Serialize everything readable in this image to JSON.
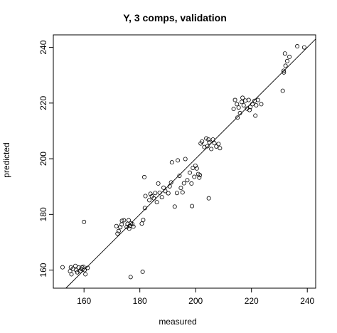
{
  "chart_data": {
    "type": "scatter",
    "title": "Y, 3 comps, validation",
    "xlabel": "measured",
    "ylabel": "predicted",
    "xlim": [
      149,
      243
    ],
    "ylim": [
      153.5,
      244.5
    ],
    "x_ticks": [
      160,
      180,
      200,
      220,
      240
    ],
    "y_ticks": [
      160,
      180,
      200,
      220,
      240
    ],
    "x_tick_labels": [
      "160",
      "180",
      "200",
      "220",
      "240"
    ],
    "y_tick_labels": [
      "160",
      "180",
      "200",
      "220",
      "240"
    ],
    "reference_line": {
      "slope": 1,
      "intercept": 0
    },
    "grid": false,
    "legend": "none",
    "points": [
      [
        152.3,
        161.0
      ],
      [
        155.0,
        159.6
      ],
      [
        155.3,
        161.0
      ],
      [
        156.0,
        160.5
      ],
      [
        156.9,
        161.5
      ],
      [
        157.6,
        159.2
      ],
      [
        158.1,
        160.9
      ],
      [
        158.6,
        159.6
      ],
      [
        159.0,
        160.4
      ],
      [
        159.3,
        161.0
      ],
      [
        159.8,
        161.2
      ],
      [
        160.2,
        160.0
      ],
      [
        160.5,
        158.5
      ],
      [
        161.3,
        160.8
      ],
      [
        157.2,
        160.0
      ],
      [
        155.5,
        158.5
      ],
      [
        160.0,
        177.3
      ],
      [
        171.6,
        175.8
      ],
      [
        172.0,
        173.1
      ],
      [
        172.4,
        174.0
      ],
      [
        173.0,
        175.4
      ],
      [
        173.5,
        176.4
      ],
      [
        173.6,
        177.7
      ],
      [
        174.3,
        177.9
      ],
      [
        175.3,
        175.5
      ],
      [
        175.6,
        176.6
      ],
      [
        176.0,
        177.9
      ],
      [
        176.4,
        175.9
      ],
      [
        176.8,
        176.8
      ],
      [
        177.3,
        176.5
      ],
      [
        176.2,
        174.9
      ],
      [
        177.7,
        175.6
      ],
      [
        176.7,
        157.5
      ],
      [
        181.0,
        159.4
      ],
      [
        180.7,
        176.7
      ],
      [
        181.2,
        178.0
      ],
      [
        181.6,
        193.4
      ],
      [
        181.8,
        182.3
      ],
      [
        182.0,
        186.6
      ],
      [
        183.4,
        185.1
      ],
      [
        183.8,
        187.4
      ],
      [
        184.3,
        186.5
      ],
      [
        185.0,
        185.8
      ],
      [
        185.5,
        187.7
      ],
      [
        186.1,
        184.4
      ],
      [
        186.6,
        191.1
      ],
      [
        187.1,
        187.8
      ],
      [
        187.9,
        186.2
      ],
      [
        188.5,
        189.6
      ],
      [
        189.1,
        188.4
      ],
      [
        190.2,
        187.6
      ],
      [
        190.7,
        190.1
      ],
      [
        191.2,
        191.5
      ],
      [
        191.5,
        198.7
      ],
      [
        192.5,
        182.8
      ],
      [
        193.3,
        187.7
      ],
      [
        193.6,
        199.4
      ],
      [
        194.2,
        193.9
      ],
      [
        194.7,
        189.5
      ],
      [
        195.3,
        187.9
      ],
      [
        195.8,
        191.2
      ],
      [
        196.3,
        199.9
      ],
      [
        197.0,
        192.3
      ],
      [
        197.9,
        195.0
      ],
      [
        198.5,
        191.1
      ],
      [
        199.0,
        196.7
      ],
      [
        199.5,
        193.5
      ],
      [
        199.9,
        197.5
      ],
      [
        200.4,
        196.5
      ],
      [
        200.9,
        194.5
      ],
      [
        201.3,
        193.2
      ],
      [
        201.5,
        194.1
      ],
      [
        198.7,
        183.0
      ],
      [
        204.7,
        185.8
      ],
      [
        201.8,
        205.5
      ],
      [
        202.3,
        206.2
      ],
      [
        203.1,
        204.2
      ],
      [
        203.8,
        207.3
      ],
      [
        204.6,
        206.9
      ],
      [
        205.6,
        203.5
      ],
      [
        206.2,
        206.9
      ],
      [
        206.7,
        205.6
      ],
      [
        207.4,
        204.4
      ],
      [
        208.2,
        205.3
      ],
      [
        208.7,
        203.8
      ],
      [
        204.2,
        204.5
      ],
      [
        204.9,
        205.9
      ],
      [
        213.6,
        217.9
      ],
      [
        214.1,
        221.1
      ],
      [
        214.8,
        219.6
      ],
      [
        215.4,
        218.4
      ],
      [
        215.9,
        216.4
      ],
      [
        216.5,
        220.4
      ],
      [
        217.2,
        219.2
      ],
      [
        217.8,
        220.9
      ],
      [
        218.4,
        218.0
      ],
      [
        219.0,
        221.1
      ],
      [
        219.6,
        218.6
      ],
      [
        220.3,
        219.6
      ],
      [
        221.1,
        220.8
      ],
      [
        221.7,
        219.2
      ],
      [
        222.3,
        221.1
      ],
      [
        223.5,
        219.6
      ],
      [
        221.4,
        215.5
      ],
      [
        215.0,
        214.8
      ],
      [
        219.3,
        217.5
      ],
      [
        216.8,
        221.9
      ],
      [
        231.2,
        224.4
      ],
      [
        231.6,
        231.0
      ],
      [
        232.2,
        233.4
      ],
      [
        232.8,
        235.1
      ],
      [
        233.6,
        236.6
      ],
      [
        236.4,
        240.4
      ],
      [
        238.9,
        240.0
      ],
      [
        232.0,
        237.8
      ],
      [
        231.5,
        231.6
      ]
    ]
  }
}
